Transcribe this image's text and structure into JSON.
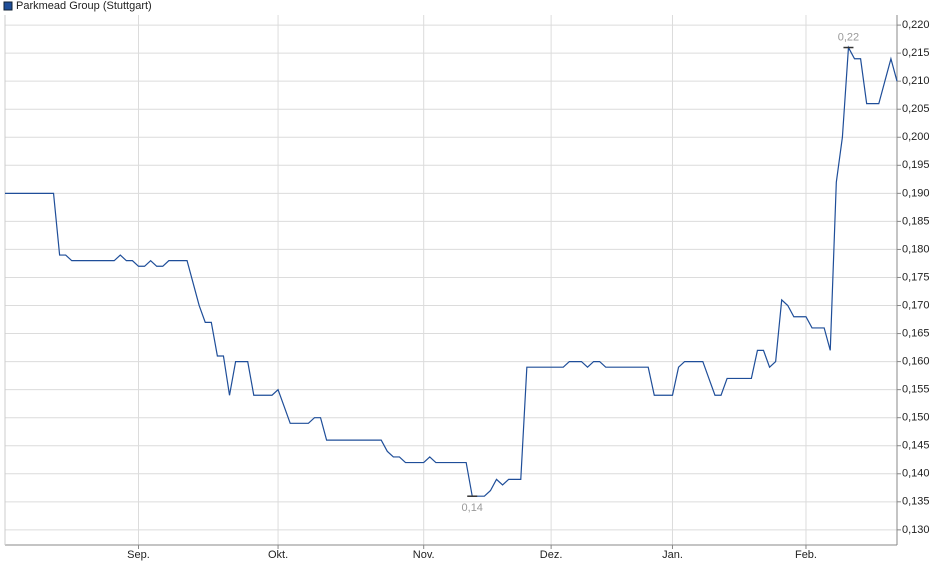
{
  "chart_data": {
    "type": "line",
    "series": [
      {
        "name": "Parkmead Group (Stuttgart)",
        "color": "#1f4e99",
        "values": [
          0.19,
          0.19,
          0.19,
          0.19,
          0.19,
          0.19,
          0.19,
          0.19,
          0.19,
          0.179,
          0.179,
          0.178,
          0.178,
          0.178,
          0.178,
          0.178,
          0.178,
          0.178,
          0.178,
          0.179,
          0.178,
          0.178,
          0.177,
          0.177,
          0.178,
          0.177,
          0.177,
          0.178,
          0.178,
          0.178,
          0.178,
          0.174,
          0.17,
          0.167,
          0.167,
          0.161,
          0.161,
          0.154,
          0.16,
          0.16,
          0.16,
          0.154,
          0.154,
          0.154,
          0.154,
          0.155,
          0.152,
          0.149,
          0.149,
          0.149,
          0.149,
          0.15,
          0.15,
          0.146,
          0.146,
          0.146,
          0.146,
          0.146,
          0.146,
          0.146,
          0.146,
          0.146,
          0.146,
          0.144,
          0.143,
          0.143,
          0.142,
          0.142,
          0.142,
          0.142,
          0.143,
          0.142,
          0.142,
          0.142,
          0.142,
          0.142,
          0.142,
          0.136,
          0.136,
          0.136,
          0.137,
          0.139,
          0.138,
          0.139,
          0.139,
          0.139,
          0.159,
          0.159,
          0.159,
          0.159,
          0.159,
          0.159,
          0.159,
          0.16,
          0.16,
          0.16,
          0.159,
          0.16,
          0.16,
          0.159,
          0.159,
          0.159,
          0.159,
          0.159,
          0.159,
          0.159,
          0.159,
          0.154,
          0.154,
          0.154,
          0.154,
          0.159,
          0.16,
          0.16,
          0.16,
          0.16,
          0.157,
          0.154,
          0.154,
          0.157,
          0.157,
          0.157,
          0.157,
          0.157,
          0.162,
          0.162,
          0.159,
          0.16,
          0.171,
          0.17,
          0.168,
          0.168,
          0.168,
          0.166,
          0.166,
          0.166,
          0.162,
          0.192,
          0.2,
          0.216,
          0.214,
          0.214,
          0.206,
          0.206,
          0.206,
          0.21,
          0.214,
          0.21
        ],
        "value_labels": [
          null,
          null,
          null,
          null,
          null,
          null,
          null,
          null,
          null,
          null,
          null,
          null,
          null,
          null,
          null,
          null,
          null,
          null,
          null,
          null,
          null,
          null,
          null,
          null,
          null,
          null,
          null,
          null,
          null,
          null,
          null,
          null,
          null,
          null,
          null,
          null,
          null,
          null,
          null,
          null,
          null,
          null,
          null,
          null,
          null,
          null,
          null,
          null,
          null,
          null,
          null,
          null,
          null,
          null,
          null,
          null,
          null,
          null,
          null,
          null,
          null,
          null,
          null,
          null,
          null,
          null,
          null,
          null,
          null,
          null,
          null,
          null,
          null,
          null,
          null,
          null,
          null,
          "0,14",
          null,
          null,
          null,
          null,
          null,
          null,
          null,
          null,
          null,
          null,
          null,
          null,
          null,
          null,
          null,
          null,
          null,
          null,
          null,
          null,
          null,
          null,
          null,
          null,
          null,
          null,
          null,
          null,
          null,
          null,
          null,
          null,
          null,
          null,
          null,
          null,
          null,
          null,
          null,
          null,
          null,
          null,
          null,
          null,
          null,
          null,
          null,
          null,
          null,
          null,
          null,
          null,
          null,
          null,
          null,
          null,
          null,
          null,
          null,
          null,
          null,
          "0,22",
          null,
          null,
          null,
          null,
          null,
          null,
          null,
          null
        ]
      }
    ],
    "categories": [
      null,
      null,
      null,
      null,
      null,
      null,
      null,
      null,
      null,
      null,
      null,
      null,
      null,
      null,
      null,
      null,
      null,
      null,
      null,
      null,
      null,
      null,
      "Sep.",
      null,
      null,
      null,
      null,
      null,
      null,
      null,
      null,
      null,
      null,
      null,
      null,
      null,
      null,
      null,
      null,
      null,
      null,
      null,
      null,
      null,
      null,
      "Okt.",
      null,
      null,
      null,
      null,
      null,
      null,
      null,
      null,
      null,
      null,
      null,
      null,
      null,
      null,
      null,
      null,
      null,
      null,
      null,
      null,
      null,
      null,
      null,
      "Nov.",
      null,
      null,
      null,
      null,
      null,
      null,
      null,
      null,
      null,
      null,
      null,
      null,
      null,
      null,
      null,
      null,
      null,
      null,
      null,
      null,
      "Dez.",
      null,
      null,
      null,
      null,
      null,
      null,
      null,
      null,
      null,
      null,
      null,
      null,
      null,
      null,
      null,
      null,
      null,
      null,
      null,
      "Jan.",
      null,
      null,
      null,
      null,
      null,
      null,
      null,
      null,
      null,
      null,
      null,
      null,
      null,
      null,
      null,
      null,
      null,
      null,
      null,
      null,
      null,
      "Feb.",
      null,
      null,
      null,
      null,
      null,
      null,
      null,
      null,
      null,
      null,
      null,
      null,
      null,
      null,
      null
    ],
    "ylim": [
      0.1273,
      0.2218
    ],
    "yticks": [
      {
        "value": 0.13,
        "label": "0,130"
      },
      {
        "value": 0.135,
        "label": "0,135"
      },
      {
        "value": 0.14,
        "label": "0,140"
      },
      {
        "value": 0.145,
        "label": "0,145"
      },
      {
        "value": 0.15,
        "label": "0,150"
      },
      {
        "value": 0.155,
        "label": "0,155"
      },
      {
        "value": 0.16,
        "label": "0,160"
      },
      {
        "value": 0.165,
        "label": "0,165"
      },
      {
        "value": 0.17,
        "label": "0,170"
      },
      {
        "value": 0.175,
        "label": "0,175"
      },
      {
        "value": 0.18,
        "label": "0,180"
      },
      {
        "value": 0.185,
        "label": "0,185"
      },
      {
        "value": 0.19,
        "label": "0,190"
      },
      {
        "value": 0.195,
        "label": "0,195"
      },
      {
        "value": 0.2,
        "label": "0,200"
      },
      {
        "value": 0.205,
        "label": "0,205"
      },
      {
        "value": 0.21,
        "label": "0,210"
      },
      {
        "value": 0.215,
        "label": "0,215"
      },
      {
        "value": 0.22,
        "label": "0,220"
      }
    ],
    "grid": true,
    "legend": "top-left"
  }
}
